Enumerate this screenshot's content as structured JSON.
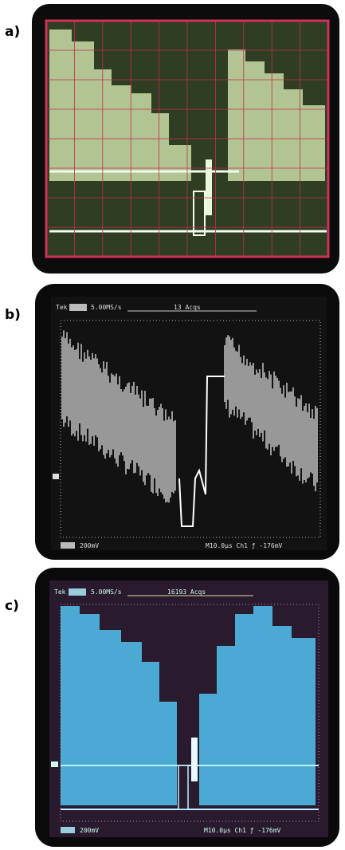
{
  "panels": [
    {
      "label": "a)"
    },
    {
      "label": "b)",
      "readouts": {
        "brand": "Tek",
        "rate": "5.00MS/s",
        "acqs": "13 Acqs",
        "scale": "200mV",
        "trigger": "M10.0µs Ch1 ƒ -176mV"
      }
    },
    {
      "label": "c)",
      "readouts": {
        "brand": "Tek",
        "rate": "5.00MS/s",
        "acqs": "16193 Acqs",
        "scale": "200mV",
        "trigger": "M10.0µs Ch1 ƒ -176mV"
      }
    }
  ]
}
